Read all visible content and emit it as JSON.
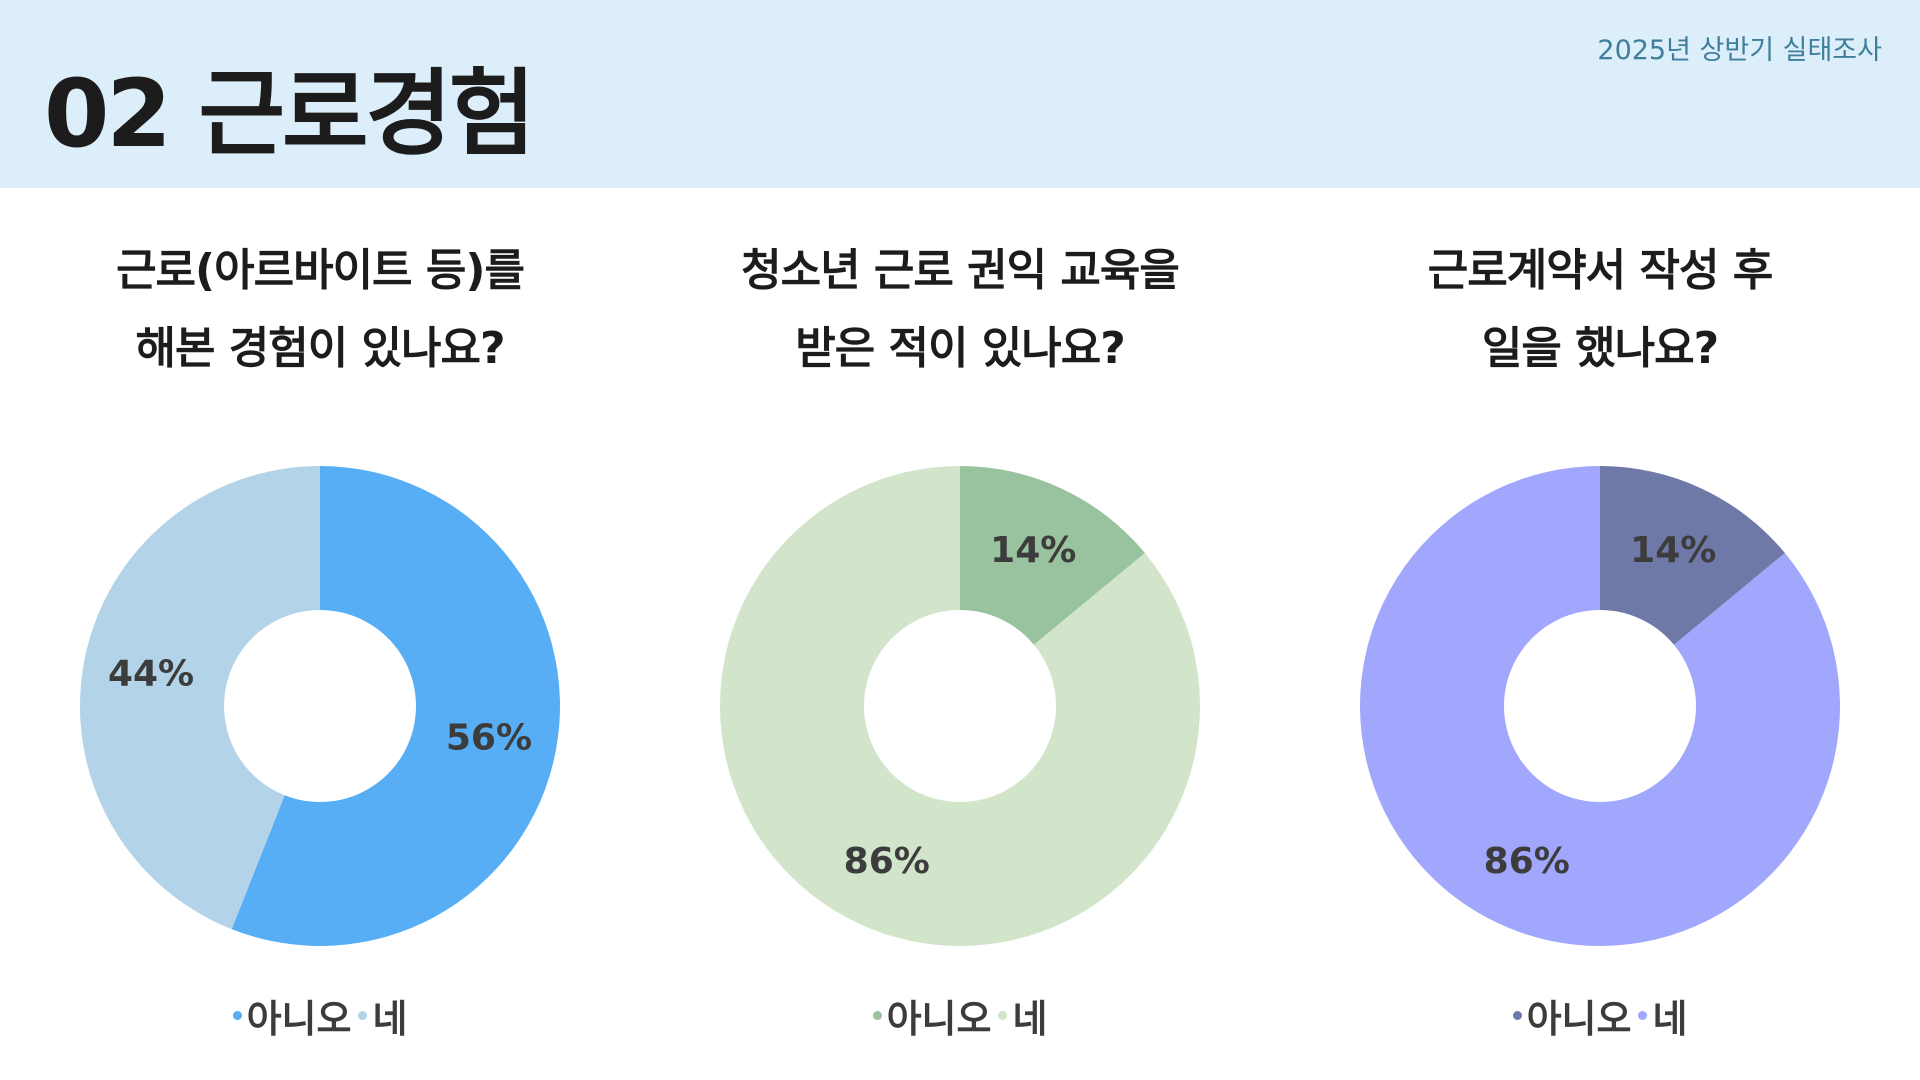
{
  "header": {
    "title": "02 근로경험",
    "subtitle": "2025년 상반기 실태조사"
  },
  "chart_data": [
    {
      "type": "pie",
      "title_lines": [
        "근로(아르바이트 등)를",
        "해본 경험이 있나요?"
      ],
      "legend_placement": "bottom",
      "series": [
        {
          "name": "아니오",
          "value": 56,
          "label": "56%",
          "color": "#58aef4"
        },
        {
          "name": "네",
          "value": 44,
          "label": "44%",
          "color": "#b3d3e9"
        }
      ]
    },
    {
      "type": "pie",
      "title_lines": [
        "청소년 근로 권익 교육을",
        "받은 적이 있나요?"
      ],
      "legend_placement": "bottom",
      "series": [
        {
          "name": "아니오",
          "value": 14,
          "label": "14%",
          "color": "#99c29e"
        },
        {
          "name": "네",
          "value": 86,
          "label": "86%",
          "color": "#d2e5cb"
        }
      ]
    },
    {
      "type": "pie",
      "title_lines": [
        "근로계약서 작성 후",
        "일을 했나요?"
      ],
      "legend_placement": "bottom",
      "series": [
        {
          "name": "아니오",
          "value": 14,
          "label": "14%",
          "color": "#6f79a8"
        },
        {
          "name": "네",
          "value": 86,
          "label": "86%",
          "color": "#a1a7fc"
        }
      ]
    }
  ]
}
